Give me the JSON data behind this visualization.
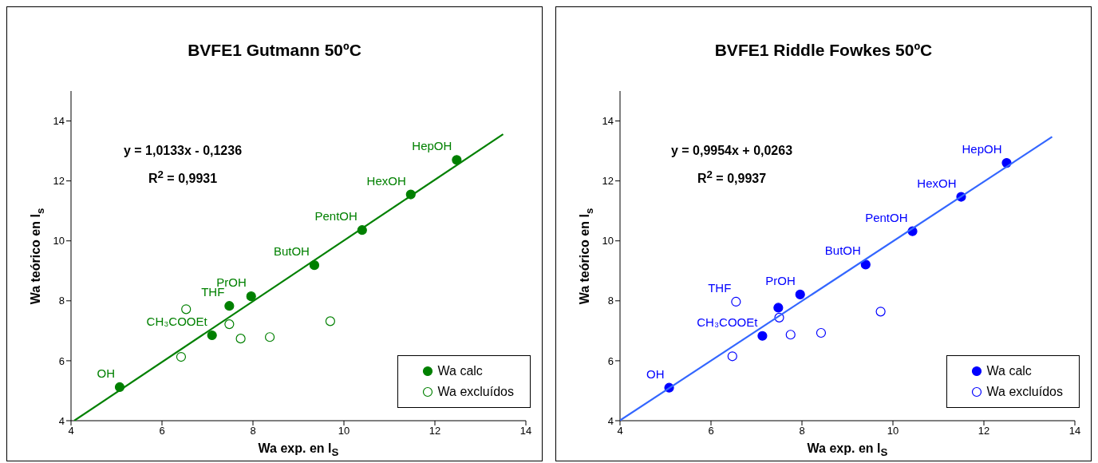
{
  "chart_data": [
    {
      "type": "scatter",
      "title": "BVFE1 Gutmann 50ºC",
      "xlabel": "Wa exp. en l$_{S}$",
      "ylabel": "Wa teórico en l$_{s}$",
      "xlim": [
        4,
        14
      ],
      "xticks": [
        4,
        6,
        8,
        10,
        12,
        14
      ],
      "ylim": [
        4,
        15
      ],
      "yticks": [
        4,
        6,
        8,
        10,
        12,
        14
      ],
      "grid": false,
      "legend": "bottom right",
      "marker": "circle",
      "series": [
        {
          "name": "Wa calc",
          "color": "#008000",
          "x": [
            5.07,
            7.1,
            7.48,
            7.96,
            9.35,
            10.4,
            11.47,
            12.48
          ],
          "values": [
            5.12,
            6.85,
            7.83,
            8.15,
            9.19,
            10.36,
            11.55,
            12.7
          ]
        },
        {
          "name": "Wa excluídos",
          "color": "#008000",
          "x": [
            6.42,
            6.53,
            7.48,
            7.73,
            8.37,
            9.7
          ],
          "values": [
            6.13,
            7.72,
            7.22,
            6.74,
            6.79,
            7.32
          ]
        },
        {
          "type": "line",
          "color": "#008000",
          "marker": "none",
          "x": [
            4.07,
            13.5
          ],
          "values": [
            4.0,
            13.56
          ]
        }
      ],
      "annotations": [
        "y = 1,0133x - 0,1236",
        "R$^{2}$ = 0,9931",
        {
          "text": "OH",
          "x": 5.07,
          "y": 5.12
        },
        {
          "text": "CH₃COOEt",
          "x": 7.1,
          "y": 6.85
        },
        {
          "text": "THF",
          "x": 7.48,
          "y": 7.83
        },
        {
          "text": "PrOH",
          "x": 7.96,
          "y": 8.15
        },
        {
          "text": "ButOH",
          "x": 9.35,
          "y": 9.19
        },
        {
          "text": "PentOH",
          "x": 10.4,
          "y": 10.36
        },
        {
          "text": "HexOH",
          "x": 11.47,
          "y": 11.55
        },
        {
          "text": "HepOH",
          "x": 12.48,
          "y": 12.7
        }
      ]
    },
    {
      "type": "scatter",
      "title": "BVFE1 Riddle Fowkes 50ºC",
      "xlabel": "Wa exp. en l$_{S}$",
      "ylabel": "Wa teórico en l$_{s}$",
      "xlim": [
        4,
        14
      ],
      "xticks": [
        4,
        6,
        8,
        10,
        12,
        14
      ],
      "ylim": [
        4,
        15
      ],
      "yticks": [
        4,
        6,
        8,
        10,
        12,
        14
      ],
      "grid": false,
      "legend": "bottom right",
      "marker": "circle",
      "series": [
        {
          "name": "Wa calc",
          "color": "#0000ff",
          "x": [
            5.08,
            7.13,
            7.48,
            7.96,
            9.4,
            10.43,
            11.5,
            12.5
          ],
          "values": [
            5.1,
            6.83,
            7.77,
            8.21,
            9.21,
            10.32,
            11.47,
            12.6
          ]
        },
        {
          "name": "Wa excluídos",
          "color": "#0000ff",
          "x": [
            6.47,
            6.55,
            7.5,
            7.75,
            8.42,
            9.73
          ],
          "values": [
            6.15,
            7.97,
            7.44,
            6.87,
            6.93,
            7.64
          ]
        },
        {
          "type": "line",
          "color": "#3366ff",
          "marker": "none",
          "x": [
            4.0,
            13.5
          ],
          "values": [
            4.01,
            13.47
          ]
        }
      ],
      "annotations": [
        "y = 0,9954x + 0,0263",
        "R$^{2}$ = 0,9937",
        {
          "text": "OH",
          "x": 5.08,
          "y": 5.1
        },
        {
          "text": "CH₃COOEt",
          "x": 7.13,
          "y": 6.83
        },
        {
          "text": "THF",
          "x": 6.55,
          "y": 7.97
        },
        {
          "text": "PrOH",
          "x": 7.96,
          "y": 8.21
        },
        {
          "text": "ButOH",
          "x": 9.4,
          "y": 9.21
        },
        {
          "text": "PentOH",
          "x": 10.43,
          "y": 10.32
        },
        {
          "text": "HexOH",
          "x": 11.5,
          "y": 11.47
        },
        {
          "text": "HepOH",
          "x": 12.5,
          "y": 12.6
        }
      ]
    }
  ]
}
